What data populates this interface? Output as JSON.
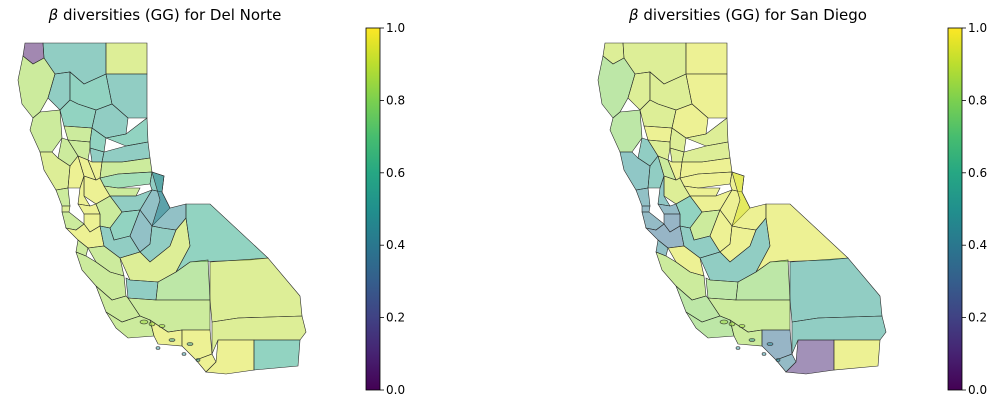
{
  "chart_data": [
    {
      "type": "choropleth",
      "title_symbol": "β",
      "title_rest": " diversities (GG) for Del Norte",
      "colorbar": {
        "colormap": "viridis",
        "range": [
          0.0,
          1.0
        ],
        "ticks": [
          "0.0",
          "0.2",
          "0.4",
          "0.6",
          "0.8",
          "1.0"
        ]
      },
      "regions": [
        {
          "name": "Del Norte",
          "value": 0.05
        },
        {
          "name": "Siskiyou",
          "value": 0.55
        },
        {
          "name": "Modoc",
          "value": 0.9
        },
        {
          "name": "Humboldt",
          "value": 0.85
        },
        {
          "name": "Trinity",
          "value": 0.55
        },
        {
          "name": "Shasta",
          "value": 0.6
        },
        {
          "name": "Lassen",
          "value": 0.55
        },
        {
          "name": "Mendocino",
          "value": 0.85
        },
        {
          "name": "Tehama",
          "value": 0.6
        },
        {
          "name": "Plumas",
          "value": 0.55
        },
        {
          "name": "Glenn",
          "value": 0.85
        },
        {
          "name": "Butte",
          "value": 0.6
        },
        {
          "name": "Sierra",
          "value": 0.6
        },
        {
          "name": "Lake",
          "value": 0.85
        },
        {
          "name": "Colusa",
          "value": 0.85
        },
        {
          "name": "Yuba",
          "value": 0.55
        },
        {
          "name": "Nevada",
          "value": 0.55
        },
        {
          "name": "Sonoma",
          "value": 0.9
        },
        {
          "name": "Napa",
          "value": 0.95
        },
        {
          "name": "Yolo",
          "value": 0.95
        },
        {
          "name": "Sutter",
          "value": 0.95
        },
        {
          "name": "Placer",
          "value": 0.85
        },
        {
          "name": "El Dorado",
          "value": 0.7
        },
        {
          "name": "Alpine",
          "value": 0.55
        },
        {
          "name": "Amador",
          "value": 0.85
        },
        {
          "name": "Calaveras",
          "value": 0.55
        },
        {
          "name": "Tuolumne",
          "value": 0.45
        },
        {
          "name": "Mono",
          "value": 0.45
        },
        {
          "name": "Sacramento",
          "value": 0.95
        },
        {
          "name": "Solano",
          "value": 0.95
        },
        {
          "name": "Marin",
          "value": 0.85
        },
        {
          "name": "Contra Costa",
          "value": 0.95
        },
        {
          "name": "San Joaquin",
          "value": 0.85
        },
        {
          "name": "San Francisco",
          "value": 0.9
        },
        {
          "name": "Alameda",
          "value": 0.95
        },
        {
          "name": "Stanislaus",
          "value": 0.6
        },
        {
          "name": "San Mateo",
          "value": 0.85
        },
        {
          "name": "Santa Clara",
          "value": 0.95
        },
        {
          "name": "Santa Cruz",
          "value": 0.85
        },
        {
          "name": "Merced",
          "value": 0.55
        },
        {
          "name": "Mariposa",
          "value": 0.45
        },
        {
          "name": "Madera",
          "value": 0.55
        },
        {
          "name": "San Benito",
          "value": 0.85
        },
        {
          "name": "Fresno",
          "value": 0.9
        },
        {
          "name": "Inyo",
          "value": 0.6
        },
        {
          "name": "Monterey",
          "value": 0.85
        },
        {
          "name": "Kings",
          "value": 0.55
        },
        {
          "name": "Tulare",
          "value": 0.8
        },
        {
          "name": "San Luis Obispo",
          "value": 0.85
        },
        {
          "name": "Kern",
          "value": 0.85
        },
        {
          "name": "Santa Barbara",
          "value": 0.85
        },
        {
          "name": "Ventura",
          "value": 0.95
        },
        {
          "name": "Los Angeles",
          "value": 0.95
        },
        {
          "name": "San Bernardino",
          "value": 0.9
        },
        {
          "name": "Orange",
          "value": 0.95
        },
        {
          "name": "Riverside",
          "value": 0.9
        },
        {
          "name": "San Diego",
          "value": 0.95
        },
        {
          "name": "Imperial",
          "value": 0.6
        }
      ]
    },
    {
      "type": "choropleth",
      "title_symbol": "β",
      "title_rest": " diversities (GG) for San Diego",
      "colorbar": {
        "colormap": "viridis",
        "range": [
          0.0,
          1.0
        ],
        "ticks": [
          "0.0",
          "0.2",
          "0.4",
          "0.6",
          "0.8",
          "1.0"
        ]
      },
      "regions": [
        {
          "name": "Del Norte",
          "value": 0.9
        },
        {
          "name": "Siskiyou",
          "value": 0.9
        },
        {
          "name": "Modoc",
          "value": 0.95
        },
        {
          "name": "Humboldt",
          "value": 0.8
        },
        {
          "name": "Trinity",
          "value": 0.9
        },
        {
          "name": "Shasta",
          "value": 0.9
        },
        {
          "name": "Lassen",
          "value": 0.95
        },
        {
          "name": "Mendocino",
          "value": 0.8
        },
        {
          "name": "Tehama",
          "value": 0.9
        },
        {
          "name": "Plumas",
          "value": 0.95
        },
        {
          "name": "Glenn",
          "value": 0.95
        },
        {
          "name": "Butte",
          "value": 0.9
        },
        {
          "name": "Sierra",
          "value": 0.9
        },
        {
          "name": "Lake",
          "value": 0.55
        },
        {
          "name": "Colusa",
          "value": 0.9
        },
        {
          "name": "Yuba",
          "value": 0.9
        },
        {
          "name": "Nevada",
          "value": 0.9
        },
        {
          "name": "Sonoma",
          "value": 0.5
        },
        {
          "name": "Napa",
          "value": 0.55
        },
        {
          "name": "Yolo",
          "value": 0.85
        },
        {
          "name": "Sutter",
          "value": 0.95
        },
        {
          "name": "Placer",
          "value": 0.95
        },
        {
          "name": "El Dorado",
          "value": 0.95
        },
        {
          "name": "Alpine",
          "value": 0.95
        },
        {
          "name": "Amador",
          "value": 0.95
        },
        {
          "name": "Calaveras",
          "value": 0.95
        },
        {
          "name": "Tuolumne",
          "value": 0.95
        },
        {
          "name": "Mono",
          "value": 0.95
        },
        {
          "name": "Sacramento",
          "value": 0.9
        },
        {
          "name": "Solano",
          "value": 0.5
        },
        {
          "name": "Marin",
          "value": 0.45
        },
        {
          "name": "Contra Costa",
          "value": 0.4
        },
        {
          "name": "San Joaquin",
          "value": 0.6
        },
        {
          "name": "San Francisco",
          "value": 0.4
        },
        {
          "name": "Alameda",
          "value": 0.35
        },
        {
          "name": "Stanislaus",
          "value": 0.85
        },
        {
          "name": "San Mateo",
          "value": 0.4
        },
        {
          "name": "Santa Clara",
          "value": 0.35
        },
        {
          "name": "Santa Cruz",
          "value": 0.45
        },
        {
          "name": "Merced",
          "value": 0.55
        },
        {
          "name": "Mariposa",
          "value": 0.95
        },
        {
          "name": "Madera",
          "value": 0.95
        },
        {
          "name": "San Benito",
          "value": 0.95
        },
        {
          "name": "Fresno",
          "value": 0.55
        },
        {
          "name": "Inyo",
          "value": 0.95
        },
        {
          "name": "Monterey",
          "value": 0.85
        },
        {
          "name": "Kings",
          "value": 0.8
        },
        {
          "name": "Tulare",
          "value": 0.8
        },
        {
          "name": "San Luis Obispo",
          "value": 0.8
        },
        {
          "name": "Kern",
          "value": 0.85
        },
        {
          "name": "Santa Barbara",
          "value": 0.8
        },
        {
          "name": "Ventura",
          "value": 0.85
        },
        {
          "name": "Los Angeles",
          "value": 0.35
        },
        {
          "name": "San Bernardino",
          "value": 0.55
        },
        {
          "name": "Orange",
          "value": 0.4
        },
        {
          "name": "Riverside",
          "value": 0.55
        },
        {
          "name": "San Diego",
          "value": 0.1
        },
        {
          "name": "Imperial",
          "value": 0.95
        }
      ]
    }
  ]
}
